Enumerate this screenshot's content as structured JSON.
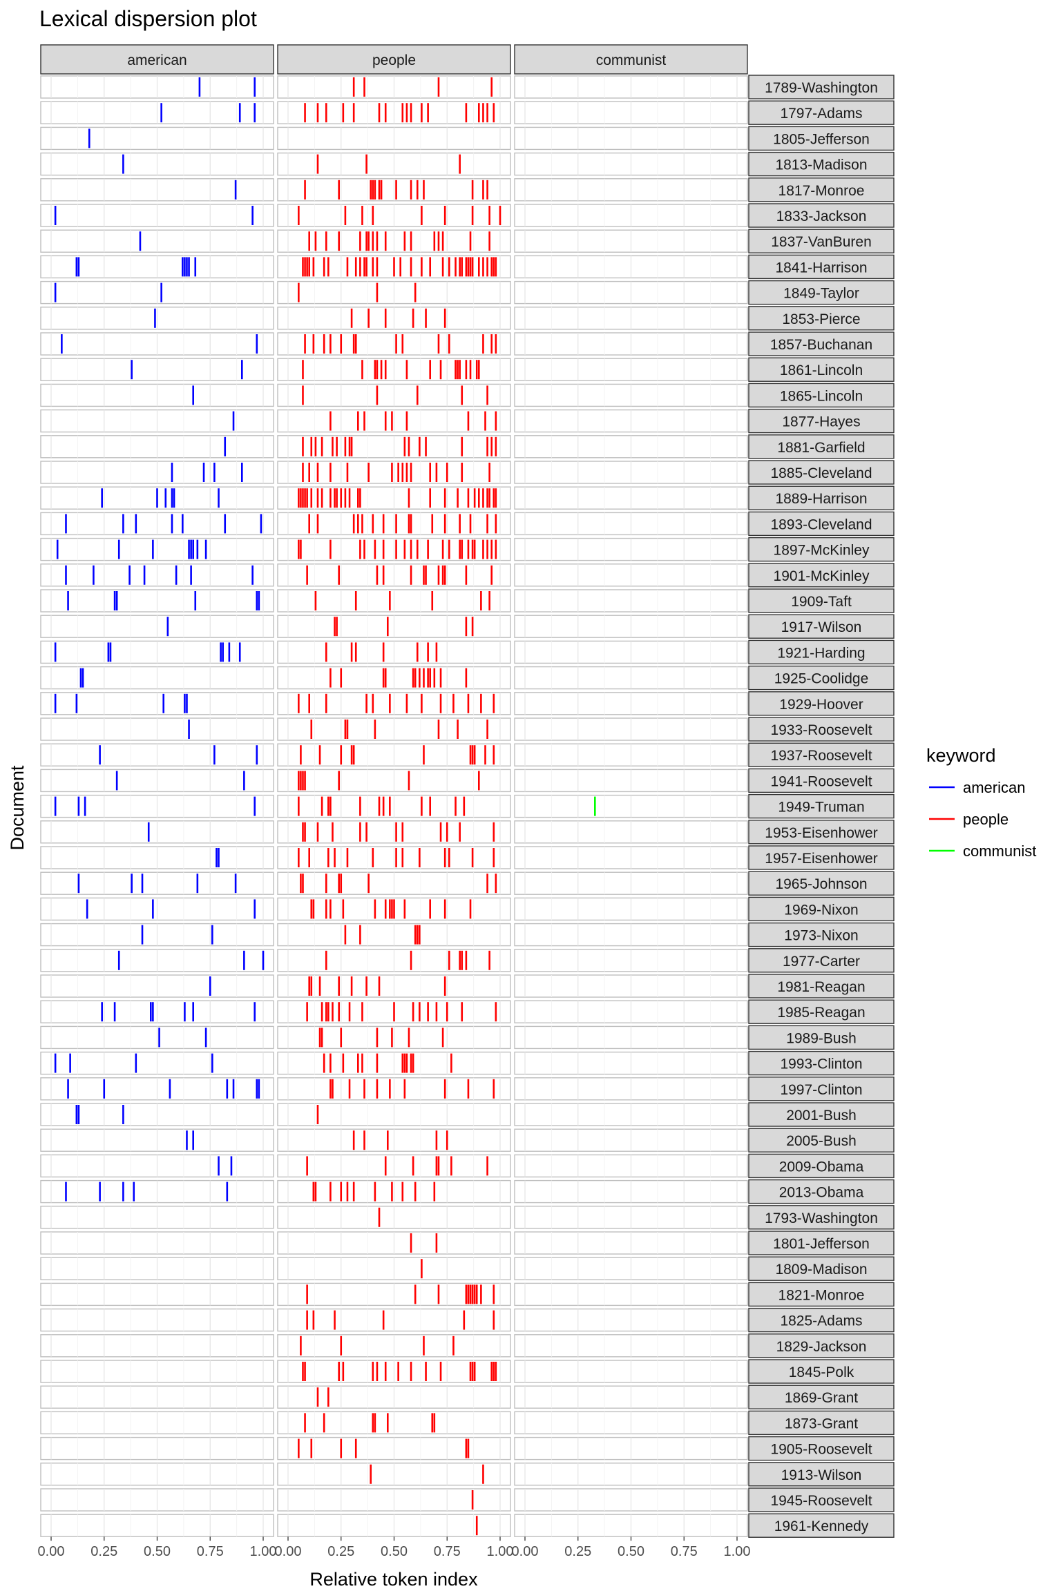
{
  "chart_data": {
    "type": "lexical-dispersion",
    "title": "Lexical dispersion plot",
    "xlabel": "Relative token index",
    "ylabel": "Document",
    "xlim": [
      0,
      1
    ],
    "x_ticks": [
      "0.00",
      "0.25",
      "0.50",
      "0.75",
      "1.00"
    ],
    "grid": true,
    "legend": {
      "title": "keyword",
      "position": "right",
      "items": [
        {
          "name": "american",
          "color": "#0000ff"
        },
        {
          "name": "people",
          "color": "#ff0000"
        },
        {
          "name": "communist",
          "color": "#00ff00"
        }
      ]
    },
    "panels": [
      "american",
      "people",
      "communist"
    ],
    "documents": [
      "1789-Washington",
      "1797-Adams",
      "1805-Jefferson",
      "1813-Madison",
      "1817-Monroe",
      "1833-Jackson",
      "1837-VanBuren",
      "1841-Harrison",
      "1849-Taylor",
      "1853-Pierce",
      "1857-Buchanan",
      "1861-Lincoln",
      "1865-Lincoln",
      "1877-Hayes",
      "1881-Garfield",
      "1885-Cleveland",
      "1889-Harrison",
      "1893-Cleveland",
      "1897-McKinley",
      "1901-McKinley",
      "1909-Taft",
      "1917-Wilson",
      "1921-Harding",
      "1925-Coolidge",
      "1929-Hoover",
      "1933-Roosevelt",
      "1937-Roosevelt",
      "1941-Roosevelt",
      "1949-Truman",
      "1953-Eisenhower",
      "1957-Eisenhower",
      "1965-Johnson",
      "1969-Nixon",
      "1973-Nixon",
      "1977-Carter",
      "1981-Reagan",
      "1985-Reagan",
      "1989-Bush",
      "1993-Clinton",
      "1997-Clinton",
      "2001-Bush",
      "2005-Bush",
      "2009-Obama",
      "2013-Obama",
      "1793-Washington",
      "1801-Jefferson",
      "1809-Madison",
      "1821-Monroe",
      "1825-Adams",
      "1829-Jackson",
      "1845-Polk",
      "1869-Grant",
      "1873-Grant",
      "1905-Roosevelt",
      "1913-Wilson",
      "1945-Roosevelt",
      "1961-Kennedy"
    ],
    "series": [
      {
        "name": "american",
        "values": [
          [
            0.7,
            0.96
          ],
          [
            0.52,
            0.89,
            0.96
          ],
          [
            0.18
          ],
          [
            0.34
          ],
          [
            0.87
          ],
          [
            0.02,
            0.95
          ],
          [
            0.42
          ],
          [
            0.12,
            0.13,
            0.62,
            0.63,
            0.64,
            0.65,
            0.68
          ],
          [
            0.02,
            0.52
          ],
          [
            0.49
          ],
          [
            0.05,
            0.97
          ],
          [
            0.38,
            0.9
          ],
          [
            0.67
          ],
          [
            0.86
          ],
          [
            0.82
          ],
          [
            0.57,
            0.72,
            0.77,
            0.9
          ],
          [
            0.24,
            0.5,
            0.54,
            0.57,
            0.58,
            0.79
          ],
          [
            0.07,
            0.34,
            0.4,
            0.57,
            0.62,
            0.82,
            0.99
          ],
          [
            0.03,
            0.32,
            0.48,
            0.65,
            0.66,
            0.67,
            0.69,
            0.73
          ],
          [
            0.07,
            0.2,
            0.37,
            0.44,
            0.59,
            0.66,
            0.95
          ],
          [
            0.08,
            0.3,
            0.31,
            0.68,
            0.97,
            0.98
          ],
          [
            0.55
          ],
          [
            0.02,
            0.27,
            0.28,
            0.8,
            0.81,
            0.84,
            0.89
          ],
          [
            0.14,
            0.15
          ],
          [
            0.02,
            0.12,
            0.53,
            0.63,
            0.64
          ],
          [
            0.65
          ],
          [
            0.23,
            0.77,
            0.97
          ],
          [
            0.31,
            0.91
          ],
          [
            0.02,
            0.13,
            0.16,
            0.96
          ],
          [
            0.46
          ],
          [
            0.78,
            0.79
          ],
          [
            0.13,
            0.38,
            0.43,
            0.69,
            0.87
          ],
          [
            0.17,
            0.48,
            0.96
          ],
          [
            0.43,
            0.76
          ],
          [
            0.32,
            0.91,
            1.0
          ],
          [
            0.75
          ],
          [
            0.24,
            0.3,
            0.47,
            0.48,
            0.63,
            0.67,
            0.96
          ],
          [
            0.51,
            0.73
          ],
          [
            0.02,
            0.09,
            0.4,
            0.76
          ],
          [
            0.08,
            0.25,
            0.56,
            0.83,
            0.86,
            0.97,
            0.98
          ],
          [
            0.12,
            0.13,
            0.34
          ],
          [
            0.64,
            0.67
          ],
          [
            0.79,
            0.85
          ],
          [
            0.07,
            0.23,
            0.34,
            0.39,
            0.83
          ],
          [],
          [],
          [],
          [],
          [],
          [],
          [],
          [],
          [],
          [],
          [],
          [],
          []
        ]
      },
      {
        "name": "people",
        "values": [
          [
            0.31,
            0.36,
            0.71,
            0.96
          ],
          [
            0.08,
            0.14,
            0.18,
            0.26,
            0.31,
            0.43,
            0.46,
            0.54,
            0.56,
            0.58,
            0.63,
            0.66,
            0.84,
            0.9,
            0.92,
            0.94,
            0.97
          ],
          [],
          [
            0.14,
            0.37,
            0.81
          ],
          [
            0.08,
            0.24,
            0.39,
            0.4,
            0.41,
            0.43,
            0.44,
            0.51,
            0.58,
            0.61,
            0.64,
            0.87,
            0.92,
            0.94
          ],
          [
            0.05,
            0.27,
            0.35,
            0.4,
            0.63,
            0.74,
            0.87,
            0.95,
            1.0
          ],
          [
            0.1,
            0.13,
            0.18,
            0.24,
            0.34,
            0.37,
            0.38,
            0.4,
            0.42,
            0.46,
            0.55,
            0.58,
            0.69,
            0.71,
            0.73,
            0.86,
            0.95
          ],
          [
            0.07,
            0.08,
            0.09,
            0.1,
            0.12,
            0.17,
            0.19,
            0.28,
            0.32,
            0.34,
            0.36,
            0.37,
            0.4,
            0.42,
            0.5,
            0.53,
            0.58,
            0.63,
            0.67,
            0.73,
            0.76,
            0.79,
            0.81,
            0.82,
            0.84,
            0.85,
            0.86,
            0.87,
            0.9,
            0.92,
            0.94,
            0.96,
            0.97,
            0.98
          ],
          [
            0.05,
            0.42,
            0.6
          ],
          [
            0.3,
            0.38,
            0.46,
            0.59,
            0.65,
            0.74
          ],
          [
            0.08,
            0.12,
            0.17,
            0.2,
            0.25,
            0.31,
            0.32,
            0.51,
            0.54,
            0.71,
            0.76,
            0.92,
            0.96,
            0.98
          ],
          [
            0.07,
            0.35,
            0.41,
            0.42,
            0.44,
            0.46,
            0.56,
            0.67,
            0.72,
            0.79,
            0.8,
            0.81,
            0.84,
            0.86,
            0.89,
            0.9
          ],
          [
            0.07,
            0.42,
            0.61,
            0.82,
            0.94
          ],
          [
            0.2,
            0.33,
            0.36,
            0.46,
            0.49,
            0.56,
            0.85,
            0.93,
            0.98
          ],
          [
            0.07,
            0.11,
            0.13,
            0.16,
            0.21,
            0.23,
            0.27,
            0.29,
            0.3,
            0.55,
            0.57,
            0.62,
            0.65,
            0.82,
            0.94,
            0.96,
            0.98
          ],
          [
            0.07,
            0.1,
            0.14,
            0.2,
            0.28,
            0.38,
            0.49,
            0.52,
            0.54,
            0.56,
            0.58,
            0.67,
            0.7,
            0.75,
            0.82,
            0.95
          ],
          [
            0.05,
            0.06,
            0.07,
            0.08,
            0.09,
            0.11,
            0.14,
            0.16,
            0.2,
            0.22,
            0.23,
            0.25,
            0.27,
            0.29,
            0.33,
            0.34,
            0.57,
            0.67,
            0.74,
            0.8,
            0.85,
            0.88,
            0.9,
            0.92,
            0.94,
            0.95,
            0.97,
            0.98
          ],
          [
            0.1,
            0.14,
            0.31,
            0.33,
            0.35,
            0.4,
            0.45,
            0.51,
            0.57,
            0.58,
            0.68,
            0.74,
            0.81,
            0.86,
            0.94,
            0.98
          ],
          [
            0.05,
            0.06,
            0.2,
            0.34,
            0.36,
            0.41,
            0.45,
            0.51,
            0.55,
            0.58,
            0.61,
            0.66,
            0.73,
            0.76,
            0.81,
            0.82,
            0.85,
            0.87,
            0.88,
            0.92,
            0.94,
            0.96,
            0.98
          ],
          [
            0.09,
            0.24,
            0.42,
            0.45,
            0.58,
            0.64,
            0.65,
            0.71,
            0.73,
            0.74,
            0.84,
            0.96
          ],
          [
            0.13,
            0.32,
            0.48,
            0.68,
            0.91,
            0.95
          ],
          [
            0.22,
            0.23,
            0.47,
            0.84,
            0.87
          ],
          [
            0.18,
            0.3,
            0.32,
            0.45,
            0.61,
            0.66,
            0.7
          ],
          [
            0.2,
            0.25,
            0.45,
            0.46,
            0.59,
            0.6,
            0.62,
            0.64,
            0.66,
            0.67,
            0.69,
            0.72,
            0.84
          ],
          [
            0.05,
            0.1,
            0.18,
            0.37,
            0.4,
            0.48,
            0.56,
            0.63,
            0.72,
            0.78,
            0.85,
            0.91,
            0.97
          ],
          [
            0.11,
            0.27,
            0.28,
            0.41,
            0.71,
            0.8,
            0.94
          ],
          [
            0.06,
            0.15,
            0.25,
            0.3,
            0.31,
            0.64,
            0.86,
            0.87,
            0.88,
            0.93,
            0.97
          ],
          [
            0.05,
            0.06,
            0.07,
            0.08,
            0.24,
            0.57,
            0.9
          ],
          [
            0.05,
            0.16,
            0.19,
            0.2,
            0.34,
            0.43,
            0.45,
            0.48,
            0.63,
            0.67,
            0.79,
            0.83
          ],
          [
            0.07,
            0.08,
            0.14,
            0.21,
            0.34,
            0.37,
            0.51,
            0.54,
            0.72,
            0.75,
            0.81,
            0.97
          ],
          [
            0.05,
            0.1,
            0.19,
            0.22,
            0.28,
            0.4,
            0.51,
            0.54,
            0.62,
            0.74,
            0.76,
            0.87,
            0.97
          ],
          [
            0.06,
            0.07,
            0.18,
            0.24,
            0.25,
            0.38,
            0.94,
            0.98
          ],
          [
            0.11,
            0.12,
            0.18,
            0.2,
            0.26,
            0.41,
            0.46,
            0.48,
            0.49,
            0.5,
            0.55,
            0.67,
            0.74,
            0.86
          ],
          [
            0.27,
            0.34,
            0.6,
            0.61,
            0.62
          ],
          [
            0.18,
            0.58,
            0.76,
            0.81,
            0.82,
            0.84,
            0.95
          ],
          [
            0.1,
            0.11,
            0.15,
            0.24,
            0.3,
            0.37,
            0.43,
            0.74
          ],
          [
            0.09,
            0.16,
            0.18,
            0.19,
            0.21,
            0.24,
            0.29,
            0.35,
            0.5,
            0.59,
            0.62,
            0.66,
            0.7,
            0.75,
            0.82,
            0.98
          ],
          [
            0.15,
            0.16,
            0.25,
            0.42,
            0.49,
            0.57,
            0.73
          ],
          [
            0.17,
            0.2,
            0.26,
            0.33,
            0.35,
            0.42,
            0.54,
            0.55,
            0.56,
            0.58,
            0.59,
            0.77
          ],
          [
            0.2,
            0.21,
            0.29,
            0.36,
            0.42,
            0.48,
            0.55,
            0.74,
            0.85,
            0.97
          ],
          [
            0.14
          ],
          [
            0.31,
            0.36,
            0.47,
            0.7,
            0.75
          ],
          [
            0.09,
            0.46,
            0.59,
            0.7,
            0.71,
            0.77,
            0.94
          ],
          [
            0.12,
            0.13,
            0.2,
            0.25,
            0.28,
            0.31,
            0.41,
            0.49,
            0.54,
            0.6,
            0.69
          ],
          [
            0.43
          ],
          [
            0.58,
            0.7
          ],
          [
            0.63
          ],
          [
            0.09,
            0.6,
            0.71,
            0.84,
            0.85,
            0.86,
            0.87,
            0.88,
            0.89,
            0.91,
            0.97
          ],
          [
            0.09,
            0.12,
            0.22,
            0.45,
            0.83,
            0.97
          ],
          [
            0.06,
            0.25,
            0.64,
            0.78
          ],
          [
            0.07,
            0.08,
            0.24,
            0.26,
            0.4,
            0.42,
            0.46,
            0.52,
            0.58,
            0.65,
            0.72,
            0.86,
            0.87,
            0.88,
            0.96,
            0.97,
            0.98
          ],
          [
            0.14,
            0.19
          ],
          [
            0.08,
            0.17,
            0.4,
            0.41,
            0.47,
            0.68,
            0.69
          ],
          [
            0.05,
            0.11,
            0.25,
            0.32,
            0.84,
            0.85
          ],
          [
            0.39,
            0.92
          ],
          [
            0.87
          ],
          [
            0.89
          ]
        ]
      },
      {
        "name": "communist",
        "values": [
          [],
          [],
          [],
          [],
          [],
          [],
          [],
          [],
          [],
          [],
          [],
          [],
          [],
          [],
          [],
          [],
          [],
          [],
          [],
          [],
          [],
          [],
          [],
          [],
          [],
          [],
          [],
          [],
          [
            0.33
          ],
          [],
          [],
          [],
          [],
          [],
          [],
          [],
          [],
          [],
          [],
          [],
          [],
          [],
          [],
          [],
          [],
          [],
          [],
          [],
          [],
          [],
          [],
          [],
          [],
          [],
          [],
          [],
          []
        ]
      }
    ]
  }
}
